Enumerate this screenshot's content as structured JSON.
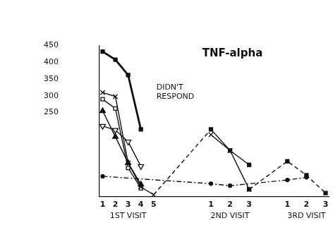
{
  "chart_data": {
    "type": "line",
    "title": "TNF-alpha",
    "categories": [
      "1",
      null,
      "2",
      null,
      "3",
      null,
      "4",
      null,
      "5",
      null,
      null,
      null,
      null,
      null,
      null,
      null,
      null,
      "1",
      null,
      null,
      "2",
      null,
      null,
      "3",
      null,
      null,
      null,
      null,
      null,
      "1",
      null,
      null,
      "2",
      null,
      null,
      "3"
    ],
    "groups": [
      "1ST VISIT",
      "2ND VISIT",
      "3RD VISIT"
    ],
    "ylim": [
      0,
      450
    ],
    "yticks": [
      250,
      300,
      350,
      400,
      450
    ],
    "grid": false,
    "series": [
      {
        "color": "#111111",
        "marker": "square",
        "line_style": "solid",
        "annotation": "DIDN'T RESPOND",
        "values": [
          432,
          null,
          408,
          null,
          362,
          null,
          200,
          null,
          null,
          null,
          null,
          null,
          null,
          null,
          null,
          null,
          null,
          null,
          null,
          null,
          null,
          null,
          null,
          null,
          null,
          null,
          null,
          null,
          null,
          null,
          null,
          null,
          null,
          null,
          null,
          null
        ]
      },
      {
        "color": "#111111",
        "marker": "x",
        "line_style": "solid",
        "values": [
          310,
          null,
          298,
          null,
          100,
          null,
          28,
          null,
          5,
          null,
          null,
          null,
          null,
          null,
          null,
          null,
          null,
          null,
          null,
          null,
          null,
          null,
          null,
          null,
          null,
          null,
          null,
          null,
          null,
          null,
          null,
          null,
          null,
          null,
          null,
          null
        ]
      },
      {
        "color": "#111111",
        "marker": "square_open",
        "line_style": "solid",
        "values": [
          290,
          null,
          262,
          null,
          85,
          null,
          24,
          null,
          null,
          null,
          null,
          null,
          null,
          null,
          null,
          null,
          null,
          null,
          null,
          null,
          null,
          null,
          null,
          null,
          null,
          null,
          null,
          null,
          null,
          null,
          null,
          null,
          null,
          null,
          null,
          null
        ]
      },
      {
        "color": "#111111",
        "marker": "triangle",
        "line_style": "solid",
        "values": [
          255,
          null,
          178,
          null,
          100,
          null,
          36,
          null,
          null,
          null,
          null,
          null,
          null,
          null,
          null,
          null,
          null,
          null,
          null,
          null,
          null,
          null,
          null,
          null,
          null,
          null,
          null,
          null,
          null,
          null,
          null,
          null,
          null,
          null,
          null,
          null
        ]
      },
      {
        "color": "#111111",
        "marker": "triangle_down",
        "line_style": "solid",
        "values": [
          210,
          null,
          198,
          null,
          163,
          null,
          90,
          null,
          null,
          null,
          null,
          null,
          null,
          null,
          null,
          null,
          null,
          null,
          null,
          null,
          null,
          null,
          null,
          null,
          null,
          null,
          null,
          null,
          null,
          null,
          null,
          null,
          null,
          null,
          null,
          null
        ]
      },
      {
        "color": "#111111",
        "marker": "circle",
        "line_style": "dashdot",
        "values": [
          60,
          null,
          null,
          null,
          null,
          null,
          null,
          null,
          null,
          null,
          null,
          null,
          null,
          null,
          null,
          null,
          null,
          38,
          null,
          null,
          32,
          null,
          null,
          null,
          null,
          null,
          null,
          null,
          null,
          49,
          null,
          null,
          57,
          null,
          null,
          null
        ]
      },
      {
        "color": "#111111",
        "marker": "none",
        "line_style": "dashed",
        "values": [
          null,
          null,
          null,
          null,
          null,
          null,
          null,
          null,
          5,
          null,
          null,
          null,
          null,
          null,
          null,
          null,
          null,
          200,
          null,
          null,
          null,
          null,
          null,
          null,
          null,
          null,
          null,
          null,
          null,
          null,
          null,
          null,
          null,
          null,
          null,
          null
        ]
      },
      {
        "color": "#111111",
        "marker": "square",
        "line_style": "solid",
        "values": [
          null,
          null,
          null,
          null,
          null,
          null,
          null,
          null,
          null,
          null,
          null,
          null,
          null,
          null,
          null,
          null,
          null,
          200,
          null,
          null,
          137,
          null,
          null,
          94,
          null,
          null,
          null,
          null,
          null,
          null,
          null,
          null,
          null,
          null,
          null,
          null
        ]
      },
      {
        "color": "#111111",
        "marker": "x",
        "line_style": "solid",
        "values": [
          null,
          null,
          null,
          null,
          null,
          null,
          null,
          null,
          null,
          null,
          null,
          null,
          null,
          null,
          null,
          null,
          null,
          184,
          null,
          null,
          137,
          null,
          null,
          21,
          null,
          null,
          null,
          null,
          null,
          null,
          null,
          null,
          null,
          null,
          null,
          null
        ]
      },
      {
        "color": "#111111",
        "marker": "square",
        "line_style": "dashed",
        "values": [
          null,
          null,
          null,
          null,
          null,
          null,
          null,
          null,
          null,
          null,
          null,
          null,
          null,
          null,
          null,
          null,
          null,
          null,
          null,
          null,
          null,
          null,
          null,
          21,
          null,
          null,
          null,
          null,
          null,
          105,
          null,
          null,
          63,
          null,
          null,
          10
        ]
      }
    ]
  }
}
